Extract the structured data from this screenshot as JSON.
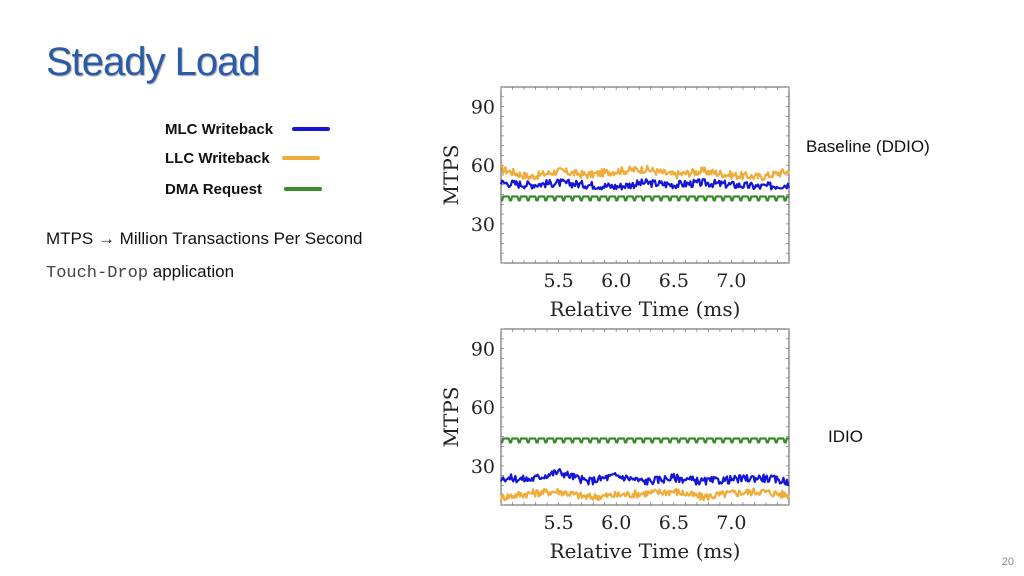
{
  "slide": {
    "title": "Steady Load",
    "mtps_def": "MTPS → Million Transactions Per Second",
    "app_mono": "Touch-Drop",
    "app_rest": " application",
    "page_number": "20"
  },
  "legend": [
    {
      "label": "MLC Writeback",
      "color": "#1515d6"
    },
    {
      "label": "LLC Writeback",
      "color": "#f0ac3a"
    },
    {
      "label": "DMA Request",
      "color": "#3a8a2e"
    }
  ],
  "chart_data": [
    {
      "type": "line",
      "side_label": "Baseline (DDIO)",
      "xlabel": "Relative Time (ms)",
      "ylabel": "MTPS",
      "xlim": [
        5.0,
        7.5
      ],
      "ylim": [
        10,
        100
      ],
      "xticks": [
        "5.5",
        "6.0",
        "6.5",
        "7.0"
      ],
      "yticks": [
        "30",
        "60",
        "90"
      ],
      "x": [
        5.0,
        5.25,
        5.5,
        5.75,
        6.0,
        6.25,
        6.5,
        6.75,
        7.0,
        7.25,
        7.5
      ],
      "series": [
        {
          "name": "MLC Writeback",
          "color": "#1515d6",
          "values": [
            51,
            50,
            51,
            50,
            49,
            51,
            50,
            51,
            50,
            49,
            50
          ]
        },
        {
          "name": "LLC Writeback",
          "color": "#f0ac3a",
          "values": [
            58,
            54,
            57,
            55,
            57,
            58,
            55,
            57,
            55,
            54,
            57
          ]
        },
        {
          "name": "DMA Request",
          "color": "#3a8a2e",
          "values": [
            44,
            44,
            44,
            44,
            44,
            44,
            44,
            44,
            44,
            44,
            44
          ]
        }
      ]
    },
    {
      "type": "line",
      "side_label": "IDIO",
      "xlabel": "Relative Time (ms)",
      "ylabel": "MTPS",
      "xlim": [
        5.0,
        7.5
      ],
      "ylim": [
        10,
        100
      ],
      "xticks": [
        "5.5",
        "6.0",
        "6.5",
        "7.0"
      ],
      "yticks": [
        "30",
        "60",
        "90"
      ],
      "x": [
        5.0,
        5.25,
        5.5,
        5.75,
        6.0,
        6.25,
        6.5,
        6.75,
        7.0,
        7.25,
        7.5
      ],
      "series": [
        {
          "name": "MLC Writeback",
          "color": "#1515d6",
          "values": [
            24,
            23,
            27,
            22,
            25,
            22,
            24,
            22,
            23,
            24,
            22
          ]
        },
        {
          "name": "LLC Writeback",
          "color": "#f0ac3a",
          "values": [
            14,
            16,
            17,
            14,
            15,
            16,
            17,
            14,
            16,
            17,
            15
          ]
        },
        {
          "name": "DMA Request",
          "color": "#3a8a2e",
          "values": [
            44,
            44,
            44,
            44,
            44,
            44,
            44,
            44,
            44,
            44,
            44
          ]
        }
      ]
    }
  ]
}
